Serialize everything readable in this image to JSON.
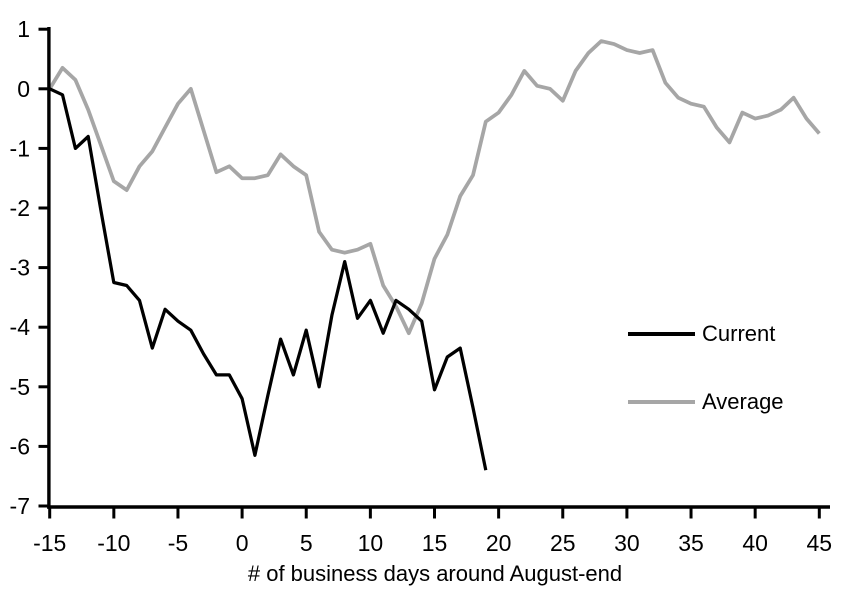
{
  "chart_data": {
    "type": "line",
    "title": "",
    "xlabel": "# of business days around August-end",
    "ylabel": "",
    "xlim": [
      -15,
      45
    ],
    "ylim": [
      -7,
      1
    ],
    "x_ticks": [
      -15,
      -10,
      -5,
      0,
      5,
      10,
      15,
      20,
      25,
      30,
      35,
      40,
      45
    ],
    "y_ticks": [
      1,
      0,
      -1,
      -2,
      -3,
      -4,
      -5,
      -6,
      -7
    ],
    "grid": false,
    "background_color": "#ffffff",
    "axis_color": "#000000",
    "legend_position": "right-inside",
    "series": [
      {
        "name": "Current",
        "color": "#000000",
        "stroke_width": 3.25,
        "x": [
          -15,
          -14,
          -13,
          -12,
          -11,
          -10,
          -9,
          -8,
          -7,
          -6,
          -5,
          -4,
          -3,
          -2,
          -1,
          0,
          1,
          2,
          3,
          4,
          5,
          6,
          7,
          8,
          9,
          10,
          11,
          12,
          13,
          14,
          15,
          16,
          17,
          18,
          19
        ],
        "values": [
          0,
          -0.1,
          -1.0,
          -0.8,
          -2.05,
          -3.25,
          -3.3,
          -3.55,
          -4.35,
          -3.7,
          -3.9,
          -4.05,
          -4.45,
          -4.8,
          -4.8,
          -5.2,
          -6.15,
          -5.15,
          -4.2,
          -4.8,
          -4.05,
          -5.0,
          -3.8,
          -2.9,
          -3.85,
          -3.55,
          -4.1,
          -3.55,
          -3.7,
          -3.9,
          -5.05,
          -4.5,
          -4.35,
          -5.35,
          -6.4
        ]
      },
      {
        "name": "Average",
        "color": "#a6a6a6",
        "stroke_width": 3.75,
        "x": [
          -15,
          -14,
          -13,
          -12,
          -11,
          -10,
          -9,
          -8,
          -7,
          -6,
          -5,
          -4,
          -3,
          -2,
          -1,
          0,
          1,
          2,
          3,
          4,
          5,
          6,
          7,
          8,
          9,
          10,
          11,
          12,
          13,
          14,
          15,
          16,
          17,
          18,
          19,
          20,
          21,
          22,
          23,
          24,
          25,
          26,
          27,
          28,
          29,
          30,
          31,
          32,
          33,
          34,
          35,
          36,
          37,
          38,
          39,
          40,
          41,
          42,
          43,
          44,
          45
        ],
        "values": [
          0,
          0.35,
          0.15,
          -0.35,
          -0.95,
          -1.55,
          -1.7,
          -1.3,
          -1.05,
          -0.65,
          -0.25,
          0.0,
          -0.7,
          -1.4,
          -1.3,
          -1.5,
          -1.5,
          -1.45,
          -1.1,
          -1.3,
          -1.45,
          -2.4,
          -2.7,
          -2.75,
          -2.7,
          -2.6,
          -3.3,
          -3.65,
          -4.1,
          -3.6,
          -2.85,
          -2.45,
          -1.8,
          -1.45,
          -0.55,
          -0.4,
          -0.1,
          0.3,
          0.05,
          0.0,
          -0.2,
          0.3,
          0.6,
          0.8,
          0.75,
          0.65,
          0.6,
          0.65,
          0.1,
          -0.15,
          -0.25,
          -0.3,
          -0.65,
          -0.9,
          -0.4,
          -0.5,
          -0.45,
          -0.35,
          -0.15,
          -0.5,
          -0.75
        ]
      }
    ]
  },
  "legend": {
    "items": [
      {
        "label": "Current",
        "color": "#000000"
      },
      {
        "label": "Average",
        "color": "#a6a6a6"
      }
    ]
  }
}
